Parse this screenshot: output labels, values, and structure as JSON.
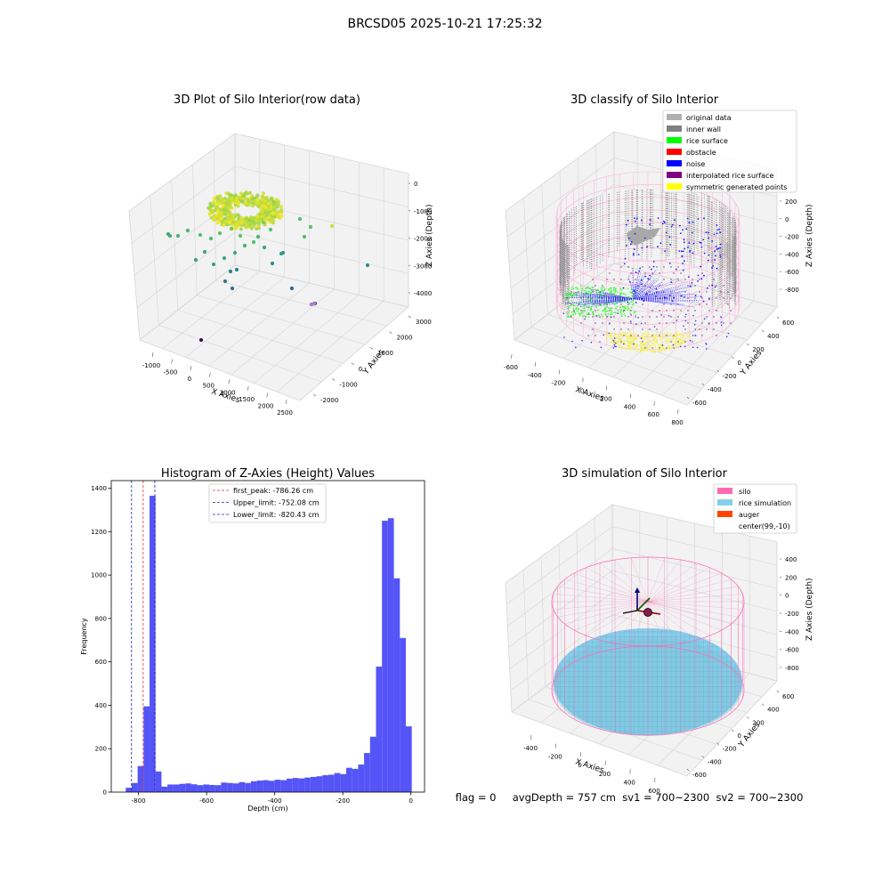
{
  "figure": {
    "suptitle": "BRCSD05 2025-10-21 17:25:32",
    "footer": "flag = 0     avgDepth = 757 cm  sv1 = 700~2300  sv2 = 700~2300"
  },
  "colors": {
    "bar": "#4b4bf7",
    "first_peak": "#e03030",
    "limits": "#2222aa",
    "silo": "#ff69b4",
    "rice_sim": "#87ceeb",
    "auger": "#ff4500",
    "pane": "#f2f2f2",
    "grid": "#d6d6d6"
  },
  "chart_data": [
    {
      "type": "scatter3d",
      "title": "3D Plot of Silo Interior(row data)",
      "xlabel": "X Axies",
      "ylabel": "Y Axies",
      "zlabel": "Z Axies (Depth)",
      "xticks": [
        "-1000",
        "-500",
        "0",
        "500",
        "1000",
        "1500",
        "2000",
        "2500"
      ],
      "yticks": [
        "-2000",
        "-1000",
        "0",
        "1000",
        "2000",
        "3000"
      ],
      "zticks": [
        "0",
        "-1000",
        "-2000",
        "-3000",
        "-4000"
      ],
      "xlim": [
        -1300,
        2700
      ],
      "ylim": [
        -2200,
        3200
      ],
      "zlim": [
        -4300,
        200
      ],
      "colormap": "viridis"
    },
    {
      "type": "scatter3d",
      "title": "3D classify of Silo Interior",
      "xlabel": "X Axies",
      "ylabel": "Y Axies",
      "zlabel": "Z Axies (Depth)",
      "xticks": [
        "-600",
        "-400",
        "-200",
        "0",
        "200",
        "400",
        "600",
        "800"
      ],
      "yticks": [
        "-600",
        "-400",
        "-200",
        "0",
        "200",
        "400",
        "600"
      ],
      "zticks": [
        "200",
        "0",
        "-200",
        "-400",
        "-600",
        "-800"
      ],
      "legend": [
        {
          "label": "original data",
          "color": "#b0b0b0"
        },
        {
          "label": "inner wall",
          "color": "#808080"
        },
        {
          "label": "rice surface",
          "color": "#00ff00"
        },
        {
          "label": "obstacle",
          "color": "#ff0000"
        },
        {
          "label": "noise",
          "color": "#0000ff"
        },
        {
          "label": "interpolated rice surface",
          "color": "#800080"
        },
        {
          "label": "symmetric generated points",
          "color": "#ffff00"
        }
      ],
      "legend_loc": "upper right"
    },
    {
      "type": "bar",
      "title": "Histogram of Z-Axies (Height) Values",
      "xlabel": "Depth (cm)",
      "ylabel": "Frequency",
      "xticks": [
        "-800",
        "-600",
        "-400",
        "-200",
        "0"
      ],
      "xtick_values": [
        -800,
        -600,
        -400,
        -200,
        0
      ],
      "yticks": [
        "0",
        "200",
        "400",
        "600",
        "800",
        "1000",
        "1200",
        "1400"
      ],
      "ytick_values": [
        0,
        200,
        400,
        600,
        800,
        1000,
        1200,
        1400
      ],
      "xlim": [
        -880,
        40
      ],
      "ylim": [
        0,
        1435
      ],
      "bin_edges": [
        -837.5,
        -820,
        -802.5,
        -785,
        -767.5,
        -750,
        -732.5,
        -715,
        -697.5,
        -680,
        -662.5,
        -645,
        -627.5,
        -610,
        -592.5,
        -575,
        -557.5,
        -540,
        -522.5,
        -505,
        -487.5,
        -470,
        -452.5,
        -435,
        -417.5,
        -400,
        -382.5,
        -365,
        -347.5,
        -330,
        -312.5,
        -295,
        -277.5,
        -260,
        -242.5,
        -225,
        -207.5,
        -190,
        -172.5,
        -155,
        -137.5,
        -120,
        -102.5,
        -85,
        -67.5,
        -50,
        -32.5,
        -15,
        2.5
      ],
      "values": [
        20,
        42,
        120,
        395,
        1365,
        95,
        25,
        35,
        35,
        38,
        40,
        36,
        32,
        35,
        33,
        32,
        44,
        42,
        40,
        46,
        42,
        50,
        53,
        55,
        52,
        57,
        55,
        62,
        65,
        63,
        67,
        70,
        73,
        78,
        80,
        88,
        83,
        112,
        107,
        127,
        180,
        255,
        578,
        1250,
        1262,
        985,
        710,
        303
      ],
      "vlines": [
        {
          "label": "first_peak: -786.26 cm",
          "x": -786.26,
          "color": "#e03030"
        },
        {
          "label": "Upper_limit: -752.08 cm",
          "x": -752.08,
          "color": "#2222aa"
        },
        {
          "label": "Lower_limit: -820.43 cm",
          "x": -820.43,
          "color": "#2222aa"
        }
      ],
      "legend_loc": "upper center"
    },
    {
      "type": "surface3d",
      "title": "3D simulation of Silo Interior",
      "xlabel": "X Axies",
      "ylabel": "Y Axies",
      "zlabel": "Z Axies (Depth)",
      "xticks": [
        "-400",
        "-200",
        "0",
        "200",
        "400",
        "600"
      ],
      "yticks": [
        "-600",
        "-400",
        "-200",
        "0",
        "200",
        "400",
        "600"
      ],
      "zticks": [
        "400",
        "200",
        "0",
        "-200",
        "-400",
        "-600",
        "-800"
      ],
      "legend": [
        {
          "label": "silo",
          "color": "#ff69b4"
        },
        {
          "label": "rice simulation",
          "color": "#87ceeb"
        },
        {
          "label": "auger",
          "color": "#ff4500"
        },
        {
          "label": "center(99,-10)",
          "color": "#ffffff"
        }
      ],
      "legend_loc": "upper right"
    }
  ]
}
